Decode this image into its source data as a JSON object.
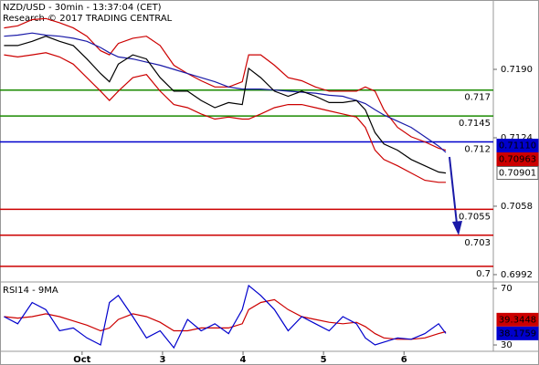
{
  "chart_data": [
    {
      "type": "line",
      "title": "NZD/USD - 30min - 13:37:04 (CET)",
      "subtitle": "Research © 2017 TRADING CENTRAL",
      "x": [
        -0.97,
        -0.8,
        -0.62,
        -0.45,
        -0.28,
        -0.11,
        0.06,
        0.23,
        0.34,
        0.45,
        0.63,
        0.8,
        0.97,
        1.14,
        1.31,
        1.48,
        1.65,
        1.82,
        1.99,
        2.07,
        2.22,
        2.39,
        2.56,
        2.73,
        2.9,
        3.07,
        3.24,
        3.41,
        3.52,
        3.64,
        3.75,
        3.92,
        4.09,
        4.26,
        4.43,
        4.52
      ],
      "xlim": [
        -1.02,
        5.11
      ],
      "ylim": [
        0.69858,
        0.72569
      ],
      "yticks": [
        {
          "value": 0.719,
          "label": "0.7190"
        },
        {
          "value": 0.7124,
          "label": "0.7124"
        },
        {
          "value": 0.7058,
          "label": "0.7058"
        },
        {
          "value": 0.6992,
          "label": "0.6992"
        }
      ],
      "series": [
        {
          "color": "#cc0000",
          "values": [
            0.723,
            0.7232,
            0.7238,
            0.7239,
            0.7235,
            0.723,
            0.7222,
            0.7208,
            0.7204,
            0.7215,
            0.722,
            0.7222,
            0.7213,
            0.7194,
            0.7186,
            0.7179,
            0.7173,
            0.7173,
            0.7178,
            0.7204,
            0.7204,
            0.7194,
            0.7182,
            0.7179,
            0.7173,
            0.7169,
            0.7169,
            0.7169,
            0.7173,
            0.7169,
            0.7151,
            0.7134,
            0.7125,
            0.712,
            0.7114,
            0.7112
          ]
        },
        {
          "color": "#cc0000",
          "values": [
            0.7204,
            0.7202,
            0.7204,
            0.7206,
            0.7202,
            0.7195,
            0.7182,
            0.7169,
            0.716,
            0.7169,
            0.7182,
            0.7185,
            0.7169,
            0.7156,
            0.7153,
            0.7147,
            0.7142,
            0.7144,
            0.7142,
            0.7142,
            0.7147,
            0.7153,
            0.7156,
            0.7156,
            0.7153,
            0.715,
            0.7147,
            0.7144,
            0.7134,
            0.7112,
            0.7103,
            0.7097,
            0.709,
            0.7083,
            0.7081,
            0.7081
          ]
        },
        {
          "color": "#1a1aa8",
          "values": [
            0.7222,
            0.7223,
            0.7225,
            0.7223,
            0.7222,
            0.722,
            0.7217,
            0.7211,
            0.7206,
            0.7202,
            0.72,
            0.7197,
            0.7194,
            0.719,
            0.7186,
            0.7182,
            0.7178,
            0.7173,
            0.7171,
            0.7171,
            0.7171,
            0.717,
            0.7169,
            0.7168,
            0.7167,
            0.7165,
            0.7164,
            0.716,
            0.7157,
            0.7151,
            0.7146,
            0.714,
            0.7134,
            0.7125,
            0.7116,
            0.711
          ]
        },
        {
          "color": "#000000",
          "values": [
            0.7213,
            0.7213,
            0.7217,
            0.7222,
            0.7217,
            0.7213,
            0.72,
            0.7186,
            0.7178,
            0.7195,
            0.7204,
            0.72,
            0.7182,
            0.7169,
            0.7169,
            0.716,
            0.7153,
            0.7158,
            0.7156,
            0.7191,
            0.7182,
            0.7169,
            0.7164,
            0.7169,
            0.7164,
            0.7158,
            0.7158,
            0.716,
            0.7151,
            0.7129,
            0.7118,
            0.7112,
            0.7103,
            0.7097,
            0.7091,
            0.709
          ]
        }
      ],
      "levels": [
        {
          "value": 0.717,
          "color": "#1a8a00"
        },
        {
          "value": 0.7145,
          "color": "#1a8a00"
        },
        {
          "value": 0.712,
          "color": "#0000cc"
        },
        {
          "value": 0.7055,
          "color": "#cc0000"
        },
        {
          "value": 0.703,
          "color": "#cc0000"
        },
        {
          "value": 0.7,
          "color": "#cc0000"
        }
      ],
      "price_labels": [
        {
          "value": 0.7111,
          "label": "0.71110",
          "color": "#0000cc"
        },
        {
          "value": 0.70963,
          "label": "0.70963",
          "color": "#cc0000"
        },
        {
          "value": 0.70901,
          "label": "0.70901",
          "color": "#ffffff"
        }
      ]
    },
    {
      "type": "line",
      "title": "RSI14 - 9MA",
      "x": [
        -0.97,
        -0.8,
        -0.62,
        -0.45,
        -0.28,
        -0.11,
        0.06,
        0.23,
        0.34,
        0.45,
        0.63,
        0.8,
        0.97,
        1.14,
        1.31,
        1.48,
        1.65,
        1.82,
        1.99,
        2.07,
        2.22,
        2.39,
        2.56,
        2.73,
        2.9,
        3.07,
        3.24,
        3.41,
        3.52,
        3.64,
        3.75,
        3.92,
        4.09,
        4.26,
        4.43,
        4.52
      ],
      "xlim": [
        -1.02,
        5.11
      ],
      "xticks": [
        {
          "value": 0,
          "label": "Oct"
        },
        {
          "value": 1,
          "label": "3"
        },
        {
          "value": 2,
          "label": "4"
        },
        {
          "value": 3,
          "label": "5"
        },
        {
          "value": 4,
          "label": "6"
        }
      ],
      "ylim": [
        25.5,
        73.9
      ],
      "yticks": [
        70,
        30
      ],
      "series": [
        {
          "color": "#cc0000",
          "values": [
            50,
            49,
            50,
            52,
            50,
            47,
            44,
            40,
            42,
            48,
            52,
            50,
            46,
            40,
            40,
            42,
            42,
            42,
            45,
            55,
            60,
            62,
            55,
            50,
            48,
            46,
            45,
            46,
            43,
            38,
            35,
            34,
            34,
            35,
            38,
            39.3448
          ]
        },
        {
          "color": "#0000cc",
          "values": [
            50,
            45,
            60,
            55,
            40,
            42,
            35,
            30,
            60,
            65,
            50,
            35,
            40,
            28,
            48,
            40,
            45,
            38,
            55,
            72,
            65,
            55,
            40,
            50,
            45,
            40,
            50,
            45,
            35,
            30,
            32,
            35,
            34,
            38,
            45,
            38.1759
          ]
        }
      ],
      "price_labels": [
        {
          "value": 39.3448,
          "color": "#cc0000"
        },
        {
          "value": 38.1759,
          "color": "#0000cc"
        }
      ]
    }
  ]
}
